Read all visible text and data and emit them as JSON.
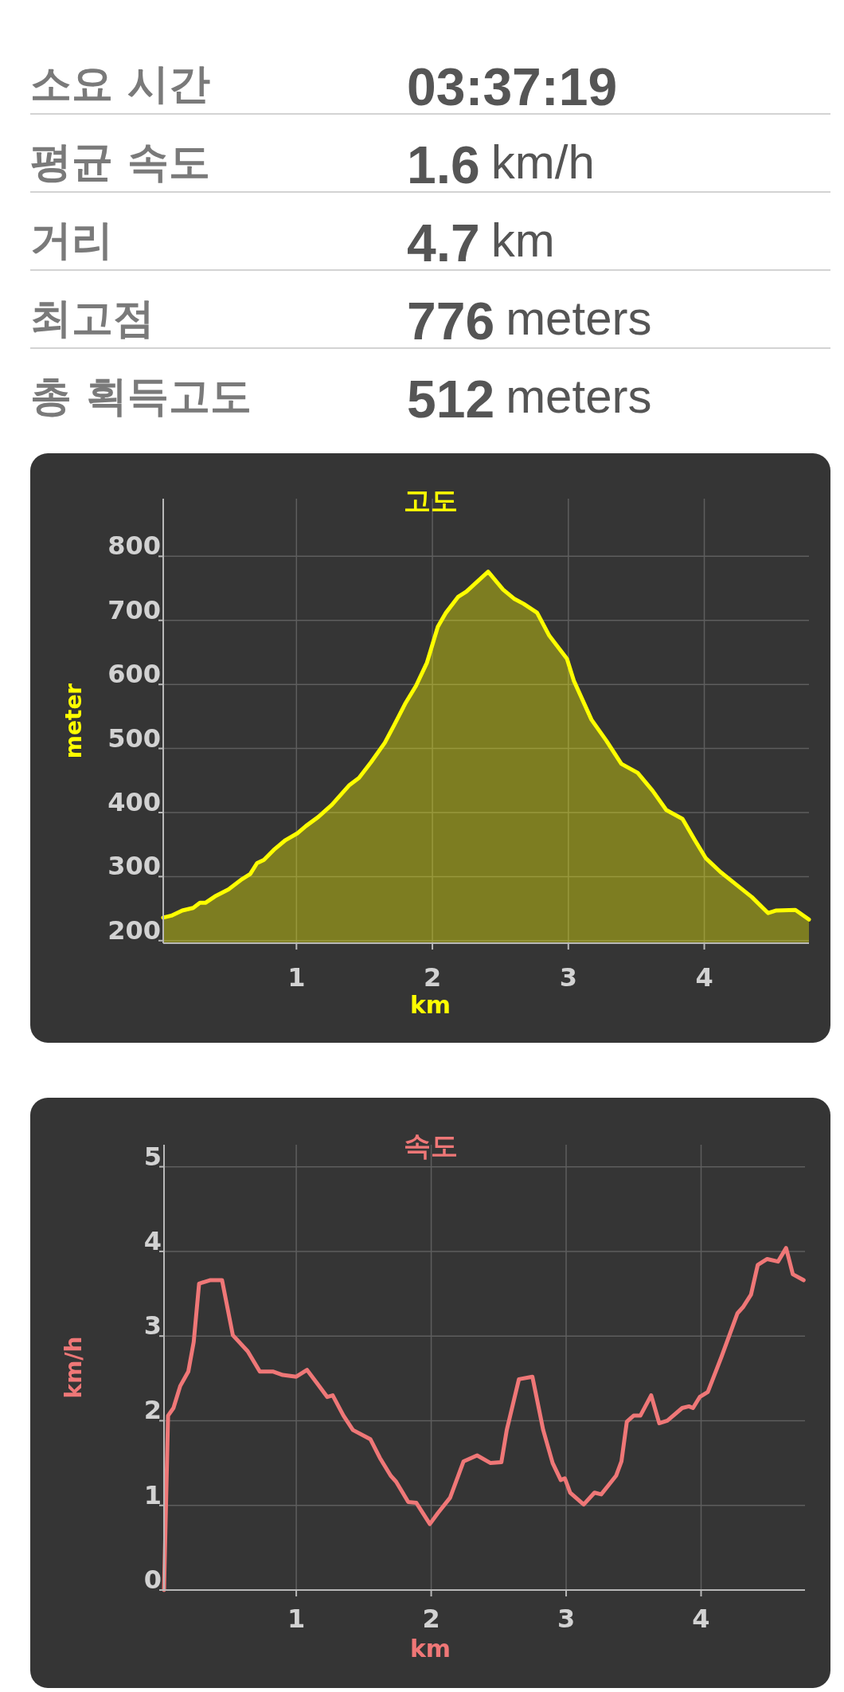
{
  "chart_data": [
    {
      "type": "other",
      "annotations": [
        "소요 시간",
        "03:37:19",
        "평균 속도",
        "1.6 km/h",
        "거리",
        "4.7 km",
        "최고점",
        "776 meters",
        "총 획득고도",
        "512 meters"
      ]
    },
    {
      "type": "area",
      "title": "고도",
      "xlabel": "km",
      "ylabel": "meter",
      "color": "#ffff00",
      "grid": true,
      "xlim": [
        0.02,
        4.77
      ],
      "ylim": [
        196,
        890
      ],
      "xticks": [
        1,
        2,
        3,
        4
      ],
      "yticks": [
        200,
        300,
        400,
        500,
        600,
        700,
        800
      ],
      "x": [
        0.02,
        0.08,
        0.16,
        0.24,
        0.29,
        0.33,
        0.4,
        0.5,
        0.6,
        0.66,
        0.71,
        0.76,
        0.84,
        0.92,
        1.01,
        1.07,
        1.16,
        1.26,
        1.39,
        1.46,
        1.55,
        1.65,
        1.72,
        1.8,
        1.88,
        1.96,
        2.0,
        2.04,
        2.1,
        2.19,
        2.25,
        2.41,
        2.52,
        2.6,
        2.67,
        2.77,
        2.86,
        2.99,
        3.04,
        3.17,
        3.28,
        3.39,
        3.51,
        3.62,
        3.72,
        3.84,
        3.93,
        4.01,
        4.12,
        4.22,
        4.35,
        4.47,
        4.53,
        4.67,
        4.77
      ],
      "values": [
        236,
        239,
        247,
        251,
        259,
        259,
        269,
        280,
        296,
        304,
        321,
        326,
        343,
        357,
        368,
        379,
        393,
        412,
        443,
        454,
        479,
        509,
        537,
        570,
        598,
        634,
        662,
        690,
        712,
        737,
        745,
        776,
        748,
        734,
        726,
        712,
        676,
        640,
        606,
        545,
        512,
        476,
        462,
        434,
        404,
        390,
        357,
        329,
        307,
        290,
        268,
        243,
        247,
        248,
        233
      ]
    },
    {
      "type": "line",
      "title": "속도",
      "xlabel": "km",
      "ylabel": "km/h",
      "color": "#ef7777",
      "grid": true,
      "xlim": [
        0.02,
        4.77
      ],
      "ylim": [
        0,
        5.26
      ],
      "xticks": [
        1,
        2,
        3,
        4
      ],
      "yticks": [
        0,
        1,
        2,
        3,
        4,
        5
      ],
      "x": [
        0.02,
        0.05,
        0.09,
        0.14,
        0.2,
        0.24,
        0.28,
        0.36,
        0.45,
        0.53,
        0.64,
        0.73,
        0.83,
        0.9,
        1.0,
        1.08,
        1.16,
        1.23,
        1.27,
        1.35,
        1.42,
        1.55,
        1.62,
        1.7,
        1.74,
        1.83,
        1.89,
        1.99,
        2.05,
        2.14,
        2.24,
        2.34,
        2.44,
        2.52,
        2.56,
        2.65,
        2.75,
        2.83,
        2.9,
        2.96,
        2.99,
        3.03,
        3.13,
        3.21,
        3.26,
        3.37,
        3.41,
        3.45,
        3.5,
        3.55,
        3.63,
        3.69,
        3.75,
        3.86,
        3.91,
        3.94,
        3.99,
        4.05,
        4.15,
        4.27,
        4.31,
        4.37,
        4.42,
        4.49,
        4.57,
        4.63,
        4.68,
        4.76
      ],
      "values": [
        0,
        2.06,
        2.15,
        2.41,
        2.58,
        2.93,
        3.62,
        3.66,
        3.66,
        3.01,
        2.82,
        2.58,
        2.58,
        2.54,
        2.52,
        2.6,
        2.43,
        2.28,
        2.3,
        2.06,
        1.89,
        1.78,
        1.56,
        1.35,
        1.28,
        1.04,
        1.03,
        0.78,
        0.91,
        1.09,
        1.52,
        1.59,
        1.5,
        1.51,
        1.89,
        2.49,
        2.52,
        1.89,
        1.5,
        1.3,
        1.32,
        1.15,
        1.01,
        1.15,
        1.13,
        1.35,
        1.52,
        1.99,
        2.06,
        2.06,
        2.3,
        1.97,
        2.0,
        2.15,
        2.17,
        2.15,
        2.28,
        2.34,
        2.75,
        3.27,
        3.34,
        3.49,
        3.84,
        3.91,
        3.88,
        4.04,
        3.73,
        3.66
      ]
    }
  ]
}
